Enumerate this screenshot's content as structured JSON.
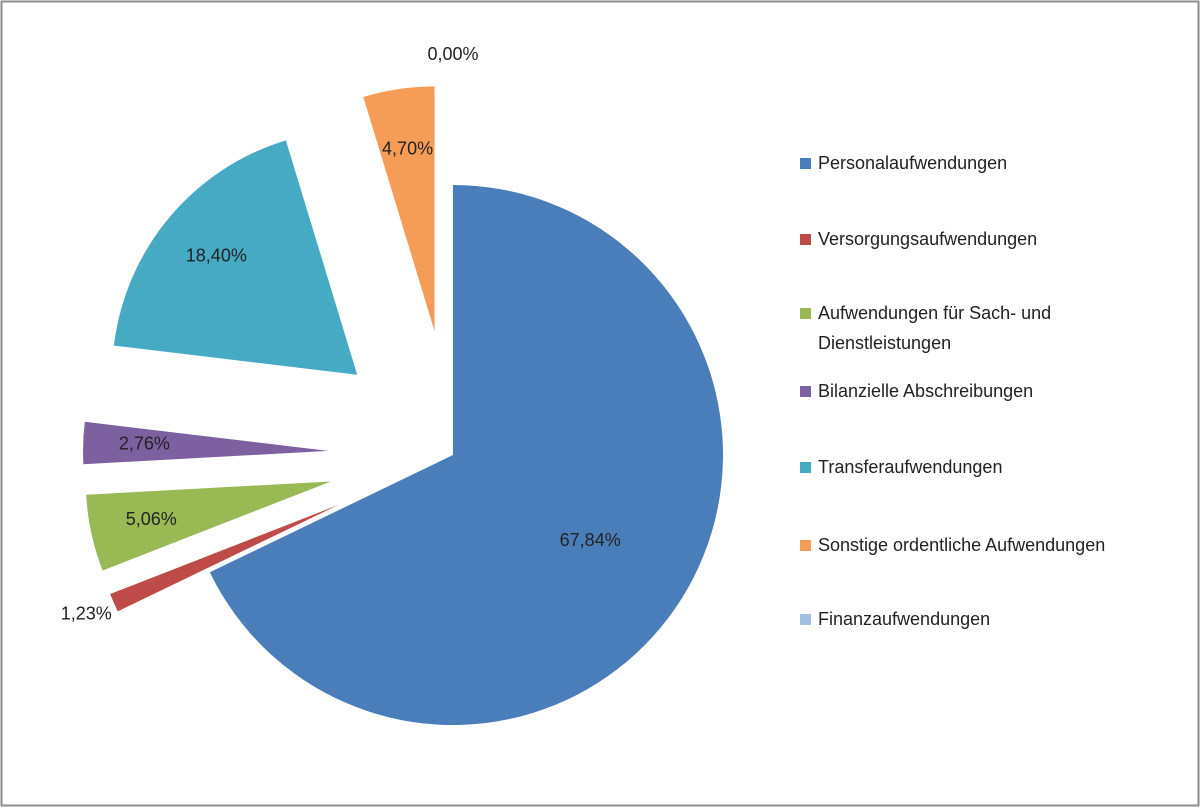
{
  "chart_data": {
    "type": "pie",
    "categories": [
      "Personalaufwendungen",
      "Versorgungsaufwendungen",
      "Aufwendungen für Sach- und Dienstleistungen",
      "Bilanzielle Abschreibungen",
      "Transferaufwendungen",
      "Sonstige ordentliche Aufwendungen",
      "Finanzaufwendungen"
    ],
    "values": [
      67.84,
      1.23,
      5.06,
      2.76,
      18.4,
      4.7,
      0.0
    ],
    "value_labels": [
      "67,84%",
      "1,23%",
      "5,06%",
      "2,76%",
      "18,40%",
      "4,70%",
      "0,00%"
    ],
    "colors": [
      "#4a7ebb",
      "#be4b48",
      "#98b954",
      "#7d60a0",
      "#46aac5",
      "#f59d56",
      "#a5bfe4"
    ],
    "legend": "right"
  }
}
